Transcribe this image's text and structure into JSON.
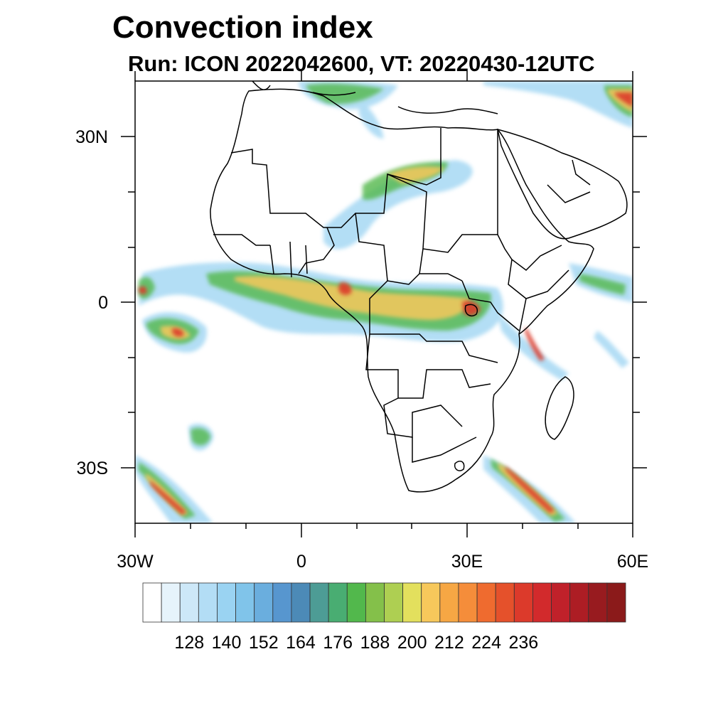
{
  "title": "Convection index",
  "subtitle": "Run: ICON 2022042600,  VT: 20220430-12UTC",
  "map": {
    "region": "Africa",
    "lon_range": [
      -30,
      60
    ],
    "lat_range": [
      -40,
      40
    ],
    "x_ticks": [
      {
        "lon": -30,
        "label": "30W"
      },
      {
        "lon": 0,
        "label": "0"
      },
      {
        "lon": 30,
        "label": "30E"
      },
      {
        "lon": 60,
        "label": "60E"
      }
    ],
    "y_ticks": [
      {
        "lat": 30,
        "label": "30N"
      },
      {
        "lat": 0,
        "label": "0"
      },
      {
        "lat": -30,
        "label": "30S"
      }
    ],
    "minor_lon_ticks": [
      -20,
      -10,
      10,
      20,
      40,
      50
    ],
    "minor_lat_ticks": [
      20,
      10,
      -10,
      -20
    ]
  },
  "colorbar": {
    "colors": [
      "#ffffff",
      "#e6f3fb",
      "#cde8f8",
      "#b3ddf5",
      "#9ad3f2",
      "#80c4ea",
      "#6aaede",
      "#5796cf",
      "#4c8ab7",
      "#4d9c95",
      "#49ad72",
      "#52b84c",
      "#84c04a",
      "#aecf52",
      "#e3e05d",
      "#f7c85b",
      "#f6a744",
      "#f58d3a",
      "#ef6b2f",
      "#e5512b",
      "#dc3a2b",
      "#d22a2c",
      "#c0212a",
      "#ad1d24",
      "#981b1f",
      "#8b1a1a"
    ],
    "labels": [
      "128",
      "140",
      "152",
      "164",
      "176",
      "188",
      "200",
      "212",
      "224",
      "236"
    ]
  }
}
